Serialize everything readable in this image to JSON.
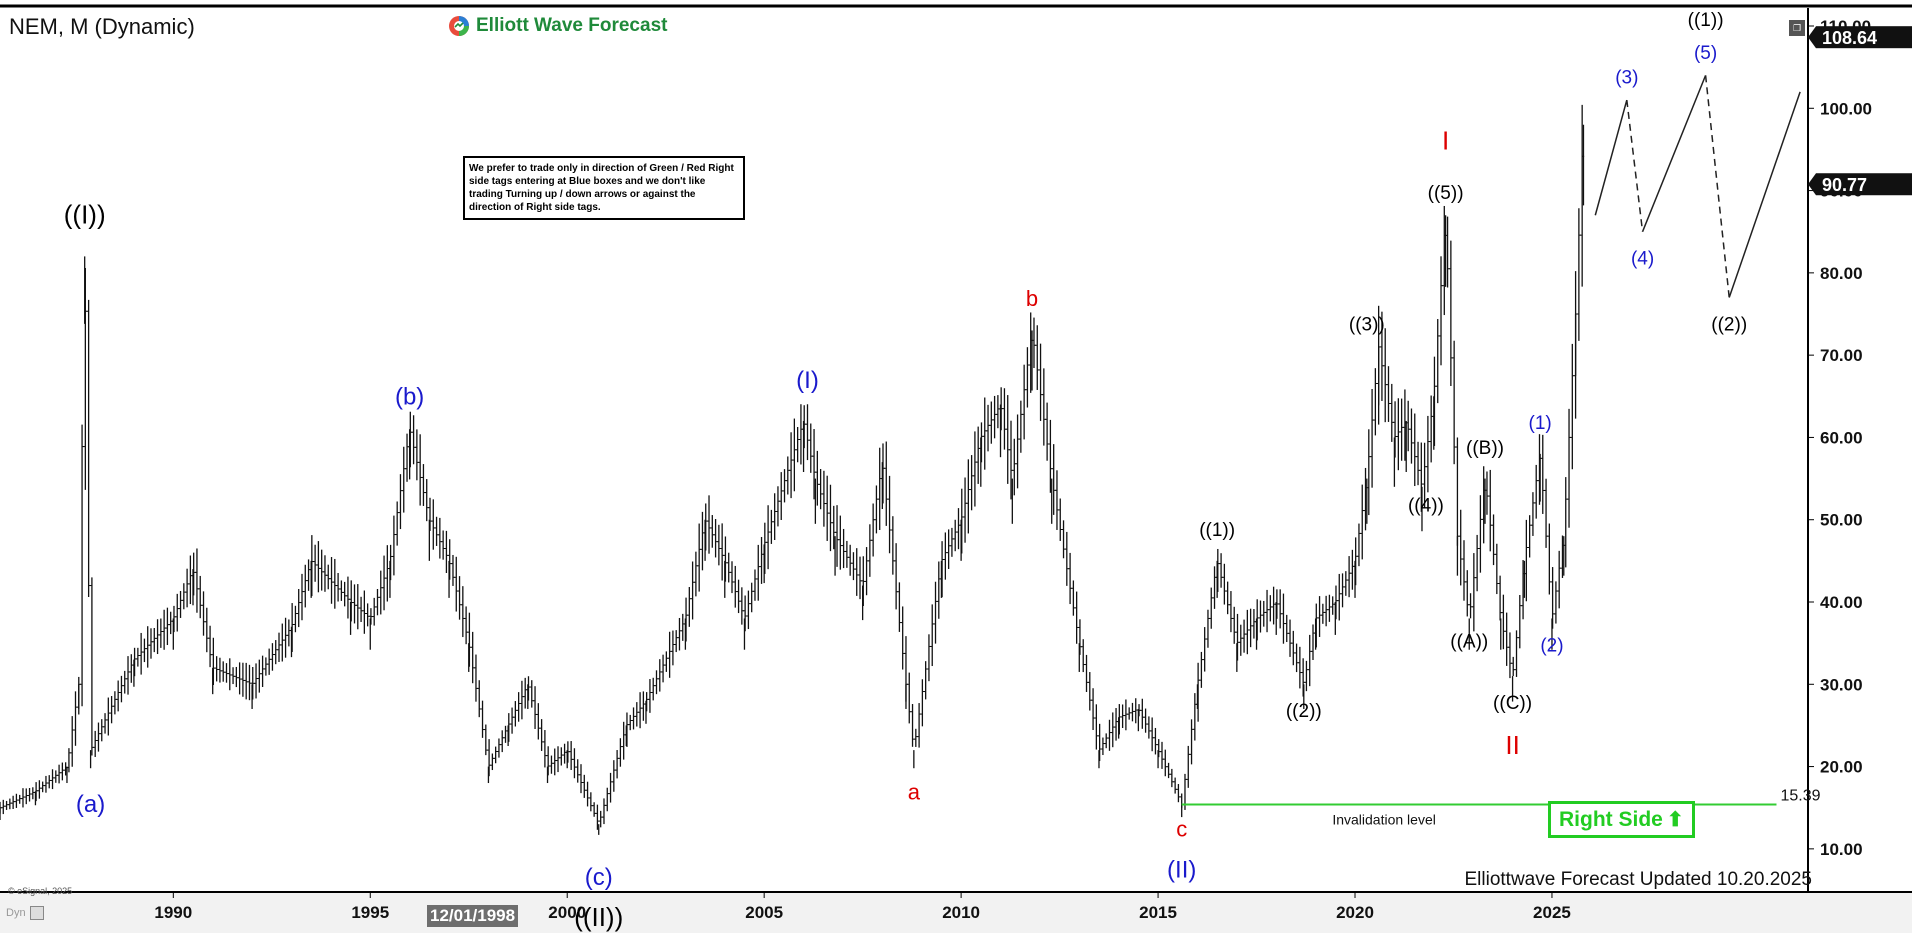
{
  "header": {
    "symbol_title": "NEM, M (Dynamic)",
    "brand_name": "Elliott Wave Forecast",
    "brand_icon": "ewf-logo-icon"
  },
  "note_box": {
    "text": "We prefer to trade only in direction of Green / Red Right side tags entering at Blue boxes and we don't like trading Turning up / down arrows or against the direction of Right side tags."
  },
  "footer": {
    "updated": "Elliottwave Forecast Updated 10.20.2025",
    "copyright": "© eSignal, 2025",
    "dyn_label": "Dyn",
    "date_marker": "12/01/1998"
  },
  "right_side_tag": {
    "label": "Right Side",
    "icon": "up-arrow-icon",
    "color": "#22cc22"
  },
  "colors": {
    "bars": "#111111",
    "wave_black": "#000000",
    "wave_blue": "#1a1acc",
    "wave_red": "#dd0000",
    "invalidation_line": "#33cc33",
    "price_tag_bg": "#111111"
  },
  "chart_data": {
    "type": "ohlc",
    "timeframe": "monthly",
    "x_range": [
      1985.6,
      2031.5
    ],
    "ylim": [
      5,
      110
    ],
    "x_ticks": [
      1990,
      1995,
      2000,
      2005,
      2010,
      2015,
      2020,
      2025
    ],
    "y_ticks": [
      10,
      20,
      30,
      40,
      50,
      60,
      70,
      80,
      90,
      100,
      110
    ],
    "y_tick_labels": [
      "10.00",
      "20.00",
      "30.00",
      "40.00",
      "50.00",
      "60.00",
      "70.00",
      "80.00",
      "90.00",
      "100.00",
      "110.00"
    ],
    "price_tags": [
      {
        "value": 108.64,
        "label": "108.64"
      },
      {
        "value": 90.77,
        "label": "90.77"
      }
    ],
    "price_path": [
      [
        1985.6,
        15
      ],
      [
        1986.5,
        17
      ],
      [
        1987.3,
        20
      ],
      [
        1987.6,
        30
      ],
      [
        1987.75,
        82
      ],
      [
        1987.9,
        22
      ],
      [
        1989.0,
        33
      ],
      [
        1990.0,
        38
      ],
      [
        1990.5,
        44
      ],
      [
        1991.0,
        32
      ],
      [
        1992.0,
        30
      ],
      [
        1993.0,
        37
      ],
      [
        1993.5,
        45
      ],
      [
        1994.5,
        40
      ],
      [
        1995.0,
        38
      ],
      [
        1995.5,
        45
      ],
      [
        1996.0,
        61
      ],
      [
        1996.5,
        50
      ],
      [
        1997.0,
        45
      ],
      [
        1997.5,
        35
      ],
      [
        1998.0,
        20
      ],
      [
        1998.5,
        25
      ],
      [
        1999.0,
        30
      ],
      [
        1999.5,
        20
      ],
      [
        2000.0,
        22
      ],
      [
        2000.8,
        13
      ],
      [
        2001.5,
        25
      ],
      [
        2002.0,
        28
      ],
      [
        2003.0,
        38
      ],
      [
        2003.5,
        50
      ],
      [
        2004.0,
        45
      ],
      [
        2004.5,
        38
      ],
      [
        2005.0,
        47
      ],
      [
        2006.0,
        62
      ],
      [
        2006.3,
        55
      ],
      [
        2006.8,
        48
      ],
      [
        2007.5,
        42
      ],
      [
        2008.0,
        57
      ],
      [
        2008.6,
        30
      ],
      [
        2008.8,
        22
      ],
      [
        2009.5,
        45
      ],
      [
        2010.0,
        50
      ],
      [
        2010.5,
        60
      ],
      [
        2011.0,
        64
      ],
      [
        2011.3,
        55
      ],
      [
        2011.8,
        73
      ],
      [
        2012.3,
        55
      ],
      [
        2013.0,
        35
      ],
      [
        2013.5,
        22
      ],
      [
        2014.0,
        26
      ],
      [
        2014.5,
        27
      ],
      [
        2015.0,
        22
      ],
      [
        2015.6,
        15.4
      ],
      [
        2016.0,
        30
      ],
      [
        2016.5,
        45
      ],
      [
        2017.0,
        35
      ],
      [
        2017.5,
        38
      ],
      [
        2018.0,
        40
      ],
      [
        2018.7,
        30
      ],
      [
        2019.0,
        38
      ],
      [
        2019.5,
        40
      ],
      [
        2020.0,
        45
      ],
      [
        2020.3,
        55
      ],
      [
        2020.6,
        71
      ],
      [
        2021.0,
        60
      ],
      [
        2021.3,
        62
      ],
      [
        2021.7,
        54
      ],
      [
        2022.0,
        65
      ],
      [
        2022.3,
        87
      ],
      [
        2022.6,
        48
      ],
      [
        2022.9,
        38
      ],
      [
        2023.3,
        55
      ],
      [
        2023.7,
        38
      ],
      [
        2024.0,
        31
      ],
      [
        2024.3,
        45
      ],
      [
        2024.7,
        58
      ],
      [
        2025.0,
        38
      ],
      [
        2025.3,
        48
      ],
      [
        2025.6,
        75
      ],
      [
        2025.8,
        98
      ]
    ],
    "projection": [
      {
        "from": [
          2026.1,
          87
        ],
        "to": [
          2026.9,
          101
        ],
        "style": "solid"
      },
      {
        "from": [
          2026.9,
          101
        ],
        "to": [
          2027.3,
          85
        ],
        "style": "dashed"
      },
      {
        "from": [
          2027.3,
          85
        ],
        "to": [
          2028.9,
          104
        ],
        "style": "solid"
      },
      {
        "from": [
          2028.9,
          104
        ],
        "to": [
          2029.5,
          77
        ],
        "style": "dashed"
      },
      {
        "from": [
          2029.5,
          77
        ],
        "to": [
          2031.3,
          102
        ],
        "style": "solid"
      }
    ],
    "invalidation": {
      "value": 15.39,
      "label": "15.39",
      "caption": "Invalidation level",
      "x_from": 2015.6,
      "x_to": 2030.7
    },
    "wave_labels": [
      {
        "text": "((I))",
        "x": 1987.75,
        "y": 86,
        "color": "black",
        "size": 26
      },
      {
        "text": "(a)",
        "x": 1987.9,
        "y": 14.5,
        "color": "blue",
        "size": 24
      },
      {
        "text": "(b)",
        "x": 1996.0,
        "y": 64,
        "color": "blue",
        "size": 24
      },
      {
        "text": "(c)",
        "x": 2000.8,
        "y": 5.6,
        "color": "blue",
        "size": 24
      },
      {
        "text": "((II))",
        "x": 2000.8,
        "y": 0.6,
        "color": "black",
        "size": 26
      },
      {
        "text": "(I)",
        "x": 2006.1,
        "y": 66,
        "color": "blue",
        "size": 24
      },
      {
        "text": "a",
        "x": 2008.8,
        "y": 16,
        "color": "red",
        "size": 22
      },
      {
        "text": "b",
        "x": 2011.8,
        "y": 76,
        "color": "red",
        "size": 22
      },
      {
        "text": "c",
        "x": 2015.6,
        "y": 11.5,
        "color": "red",
        "size": 22
      },
      {
        "text": "(II)",
        "x": 2015.6,
        "y": 6.5,
        "color": "blue",
        "size": 24
      },
      {
        "text": "((1))",
        "x": 2016.5,
        "y": 48,
        "color": "black",
        "size": 19
      },
      {
        "text": "((2))",
        "x": 2018.7,
        "y": 26,
        "color": "black",
        "size": 19
      },
      {
        "text": "((3))",
        "x": 2020.3,
        "y": 73,
        "color": "black",
        "size": 19
      },
      {
        "text": "((4))",
        "x": 2021.8,
        "y": 51,
        "color": "black",
        "size": 19
      },
      {
        "text": "((5))",
        "x": 2022.3,
        "y": 89,
        "color": "black",
        "size": 19
      },
      {
        "text": "I",
        "x": 2022.3,
        "y": 95,
        "color": "red",
        "size": 26
      },
      {
        "text": "((B))",
        "x": 2023.3,
        "y": 58,
        "color": "black",
        "size": 19
      },
      {
        "text": "((A))",
        "x": 2022.9,
        "y": 34.5,
        "color": "black",
        "size": 19
      },
      {
        "text": "((C))",
        "x": 2024.0,
        "y": 27,
        "color": "black",
        "size": 19
      },
      {
        "text": "II",
        "x": 2024.0,
        "y": 21.5,
        "color": "red",
        "size": 26
      },
      {
        "text": "(1)",
        "x": 2024.7,
        "y": 61,
        "color": "blue",
        "size": 19
      },
      {
        "text": "(2)",
        "x": 2025.0,
        "y": 34,
        "color": "blue",
        "size": 19
      },
      {
        "text": "(3)",
        "x": 2026.9,
        "y": 103,
        "color": "blue",
        "size": 19
      },
      {
        "text": "(4)",
        "x": 2027.3,
        "y": 81,
        "color": "blue",
        "size": 19
      },
      {
        "text": "(5)",
        "x": 2028.9,
        "y": 106,
        "color": "blue",
        "size": 19
      },
      {
        "text": "((1))",
        "x": 2028.9,
        "y": 110,
        "color": "black",
        "size": 19
      },
      {
        "text": "((2))",
        "x": 2029.5,
        "y": 73,
        "color": "black",
        "size": 19
      }
    ]
  }
}
